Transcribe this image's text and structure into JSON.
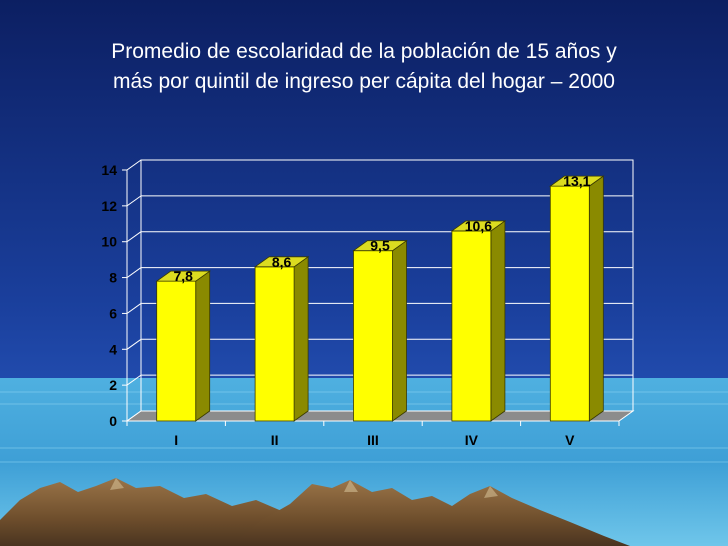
{
  "slide": {
    "title_line1": "Promedio de escolaridad de la población de 15 años y",
    "title_line2": "más por quintil de ingreso per cápita del hogar – 2000"
  },
  "colors": {
    "background_top": "#0d2266",
    "background_bottom": "#2a5ac8",
    "bar_front": "#ffff00",
    "bar_side": "#8a8a00",
    "bar_top": "#dcdc20",
    "floor": "#8c8c8c",
    "text": "#000000"
  },
  "chart_data": {
    "type": "bar",
    "style": "3d",
    "categories": [
      "I",
      "II",
      "III",
      "IV",
      "V"
    ],
    "values": [
      7.8,
      8.6,
      9.5,
      10.6,
      13.1
    ],
    "data_labels": [
      "7,8",
      "8,6",
      "9,5",
      "10,6",
      "13,1"
    ],
    "yticks": [
      0,
      2,
      4,
      6,
      8,
      10,
      12,
      14
    ],
    "ylim": [
      0,
      14
    ],
    "grid": true,
    "legend": "none",
    "xlabel": "",
    "ylabel": ""
  }
}
